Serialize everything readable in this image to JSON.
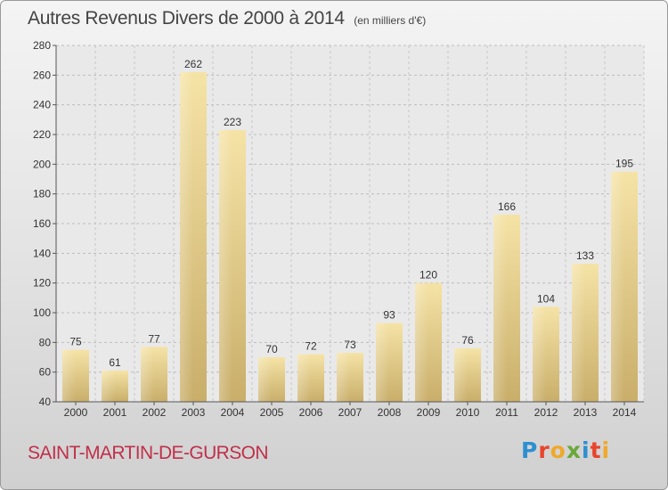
{
  "header": {
    "title": "Autres Revenus Divers de 2000 à 2014",
    "unit": "(en milliers d'€)"
  },
  "footer": {
    "commune": "SAINT-MARTIN-DE-GURSON",
    "logo": "Proxiti",
    "logo_colors": [
      "#2e8fd0",
      "#e8452c",
      "#f0a82a",
      "#6aa83a",
      "#2e8fd0",
      "#e8452c",
      "#f0a82a"
    ]
  },
  "chart_data": {
    "type": "bar",
    "title": "Autres Revenus Divers de 2000 à 2014",
    "subtitle": "(en milliers d'€)",
    "xlabel": "",
    "ylabel": "",
    "categories": [
      "2000",
      "2001",
      "2002",
      "2003",
      "2004",
      "2005",
      "2006",
      "2007",
      "2008",
      "2009",
      "2010",
      "2011",
      "2012",
      "2013",
      "2014"
    ],
    "values": [
      75,
      61,
      77,
      262,
      223,
      70,
      72,
      73,
      93,
      120,
      76,
      166,
      104,
      133,
      195
    ],
    "ylim": [
      40,
      280
    ],
    "yticks": [
      40,
      60,
      80,
      100,
      120,
      140,
      160,
      180,
      200,
      220,
      240,
      260,
      280
    ],
    "grid": true,
    "legend": "none",
    "bar_color": "#e8d08a"
  }
}
